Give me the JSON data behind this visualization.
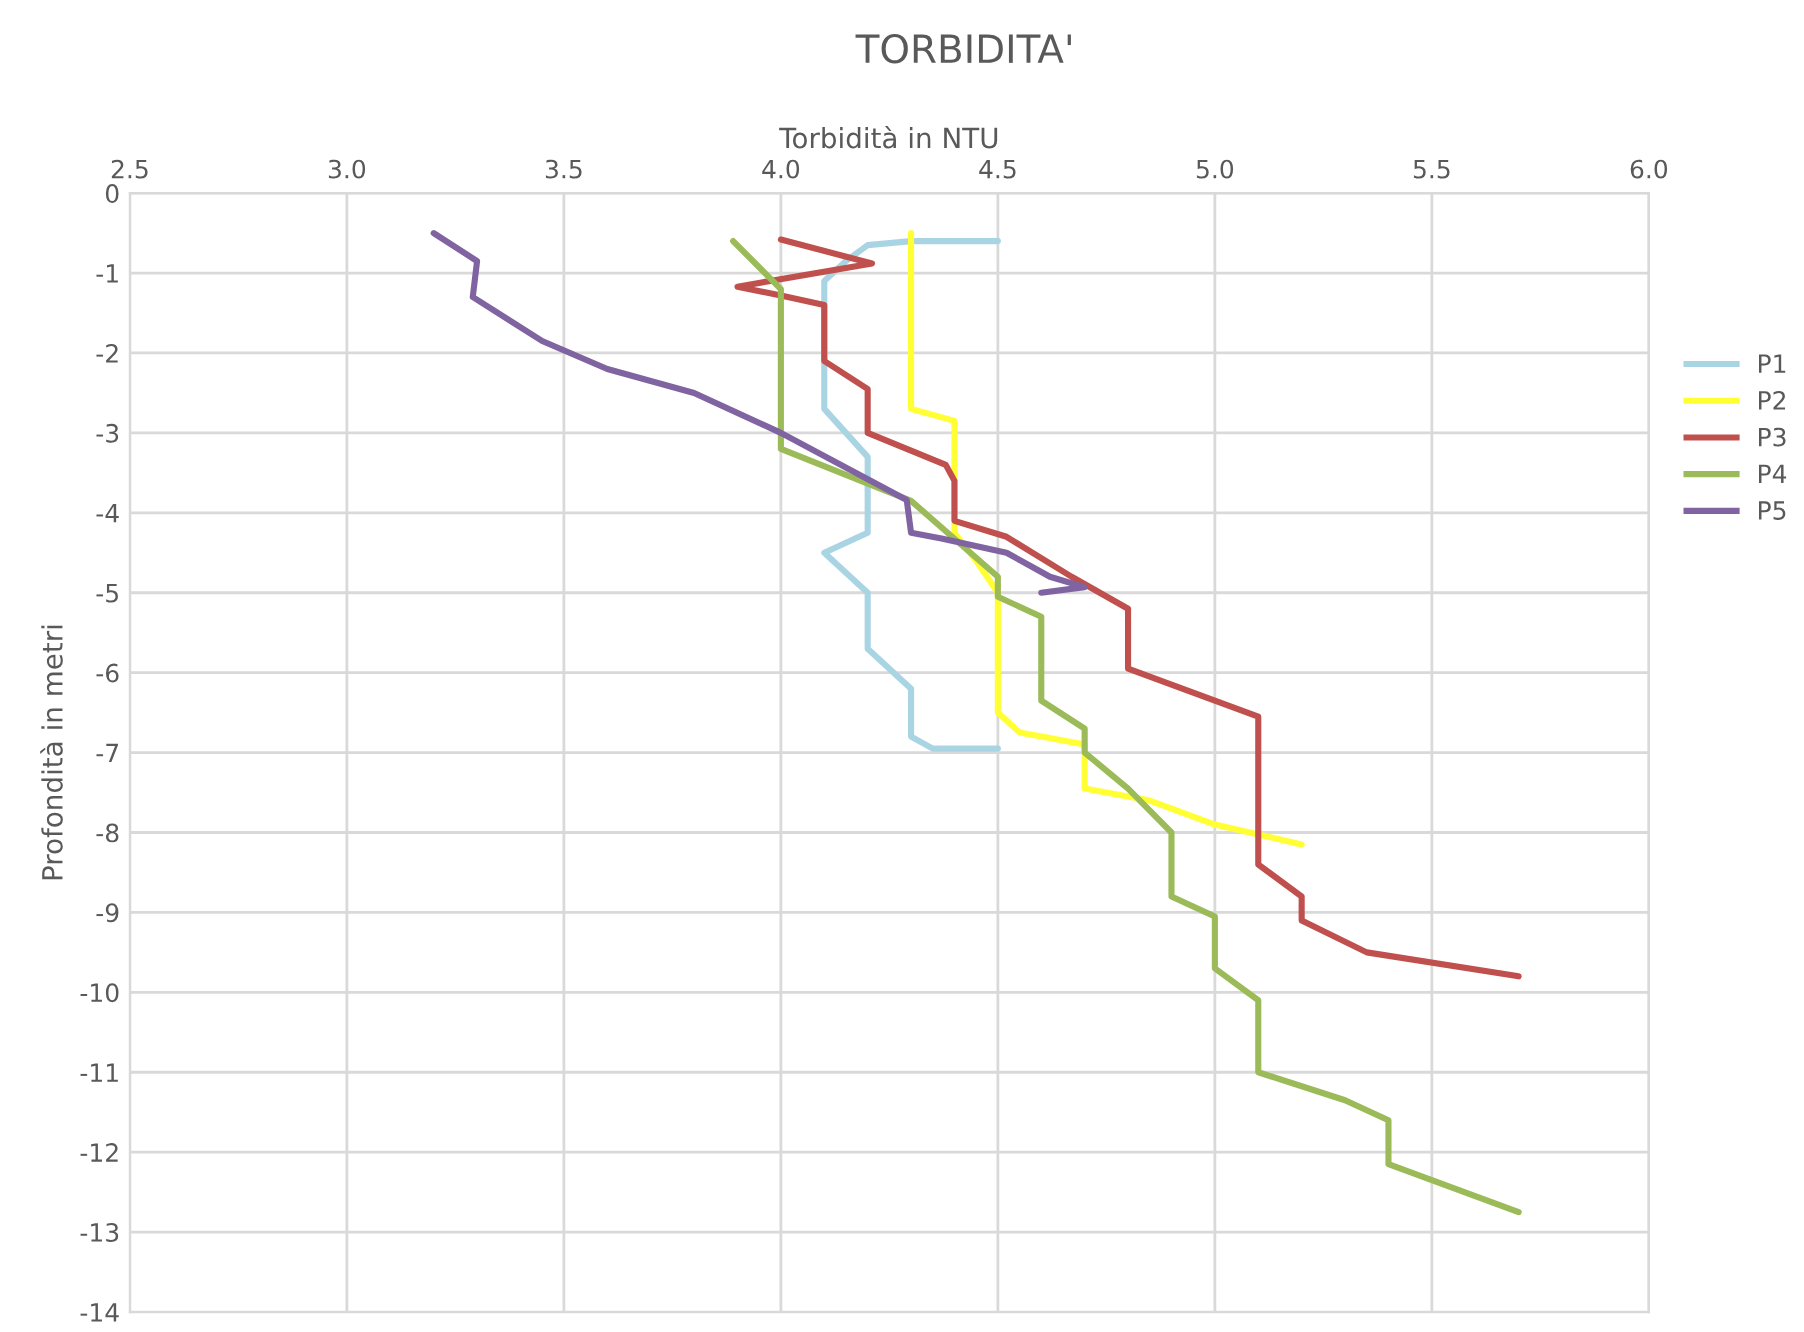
{
  "chart_data": {
    "type": "line",
    "title": "TORBIDITA'",
    "xlabel": "Torbidità in NTU",
    "ylabel": "Profondità in metri",
    "xlim": [
      2.5,
      6.0
    ],
    "xticks": [
      {
        "value": 2.5,
        "label": "2.5"
      },
      {
        "value": 3.0,
        "label": "3.0"
      },
      {
        "value": 3.5,
        "label": "3.5"
      },
      {
        "value": 4.0,
        "label": "4.0"
      },
      {
        "value": 4.5,
        "label": "4.5"
      },
      {
        "value": 5.0,
        "label": "5.0"
      },
      {
        "value": 5.5,
        "label": "5.5"
      },
      {
        "value": 6.0,
        "label": "6.0"
      }
    ],
    "ylim": [
      -14,
      0
    ],
    "yticks": [
      0,
      -1,
      -2,
      -3,
      -4,
      -5,
      -6,
      -7,
      -8,
      -9,
      -10,
      -11,
      -12,
      -13,
      -14
    ],
    "grid": true,
    "legend": "right",
    "marker": "none",
    "line_style": "solid",
    "series": [
      {
        "name": "P1",
        "color": "#a9d4e4",
        "x": [
          4.5,
          4.3,
          4.2,
          4.15,
          4.1,
          4.1,
          4.15,
          4.2,
          4.2,
          4.1,
          4.2,
          4.2,
          4.3,
          4.3,
          4.35,
          4.5
        ],
        "values": [
          -0.6,
          -0.6,
          -0.65,
          -0.85,
          -1.1,
          -2.7,
          -3.0,
          -3.3,
          -4.25,
          -4.5,
          -5.0,
          -5.7,
          -6.2,
          -6.8,
          -6.95,
          -6.95
        ]
      },
      {
        "name": "P2",
        "color": "#ffff33",
        "x": [
          4.3,
          4.3,
          4.4,
          4.4,
          4.45,
          4.5,
          4.5,
          4.55,
          4.7,
          4.7,
          4.85,
          5.0,
          5.2
        ],
        "values": [
          -0.5,
          -2.7,
          -2.85,
          -4.25,
          -4.6,
          -5.0,
          -6.5,
          -6.75,
          -6.9,
          -7.45,
          -7.6,
          -7.9,
          -8.15
        ]
      },
      {
        "name": "P3",
        "color": "#c0504d",
        "x": [
          4.0,
          4.21,
          3.9,
          4.0,
          4.1,
          4.1,
          4.2,
          4.2,
          4.38,
          4.4,
          4.4,
          4.52,
          4.67,
          4.8,
          4.8,
          5.1,
          5.1,
          5.2,
          5.2,
          5.35,
          5.7
        ],
        "values": [
          -0.58,
          -0.88,
          -1.17,
          -1.28,
          -1.4,
          -2.1,
          -2.45,
          -3.0,
          -3.4,
          -3.6,
          -4.1,
          -4.3,
          -4.8,
          -5.2,
          -5.95,
          -6.55,
          -8.4,
          -8.8,
          -9.1,
          -9.5,
          -9.8
        ]
      },
      {
        "name": "P4",
        "color": "#9bbb59",
        "x": [
          3.89,
          4.0,
          4.0,
          4.3,
          4.5,
          4.5,
          4.6,
          4.6,
          4.7,
          4.7,
          4.8,
          4.9,
          4.9,
          5.0,
          5.0,
          5.1,
          5.1,
          5.3,
          5.4,
          5.4,
          5.7
        ],
        "values": [
          -0.6,
          -1.2,
          -3.2,
          -3.85,
          -4.8,
          -5.05,
          -5.3,
          -6.35,
          -6.7,
          -7.0,
          -7.45,
          -8.0,
          -8.8,
          -9.05,
          -9.7,
          -10.1,
          -11.0,
          -11.35,
          -11.6,
          -12.15,
          -12.75
        ]
      },
      {
        "name": "P5",
        "color": "#8064a2",
        "x": [
          3.2,
          3.3,
          3.29,
          3.45,
          3.6,
          3.8,
          4.0,
          4.29,
          4.3,
          4.37,
          4.52,
          4.62,
          4.7,
          4.6
        ],
        "values": [
          -0.5,
          -0.85,
          -1.3,
          -1.85,
          -2.2,
          -2.5,
          -3.0,
          -3.84,
          -4.25,
          -4.32,
          -4.5,
          -4.8,
          -4.93,
          -5.0
        ]
      }
    ]
  }
}
